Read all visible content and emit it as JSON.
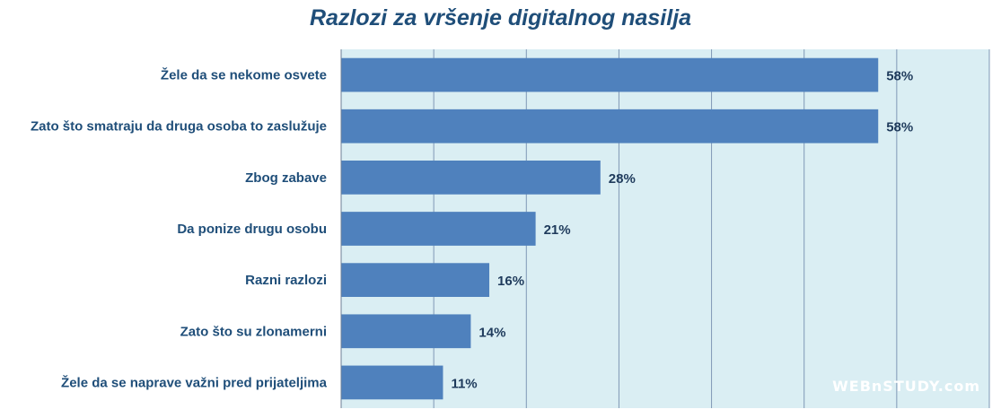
{
  "chart_data": {
    "type": "bar",
    "orientation": "horizontal",
    "title": "Razlozi za vršenje digitalnog nasilja",
    "categories": [
      "Žele da se nekome osvete",
      "Zato što smatraju da druga osoba to zaslužuje",
      "Zbog zabave",
      "Da ponize drugu osobu",
      "Razni razlozi",
      "Zato što su zlonamerni",
      "Žele da se naprave važni pred prijateljima"
    ],
    "values": [
      58,
      58,
      28,
      21,
      16,
      14,
      11
    ],
    "value_labels": [
      "58%",
      "58%",
      "28%",
      "21%",
      "16%",
      "14%",
      "11%"
    ],
    "xlim": [
      0,
      70
    ],
    "grid": true,
    "legend": "none"
  },
  "colors": {
    "bar": "#4f81bd",
    "plot_background": "#daeef3",
    "gridline": "#7f98b5",
    "title": "#1f4e79"
  },
  "watermark": "WEBnSTUDY.com"
}
